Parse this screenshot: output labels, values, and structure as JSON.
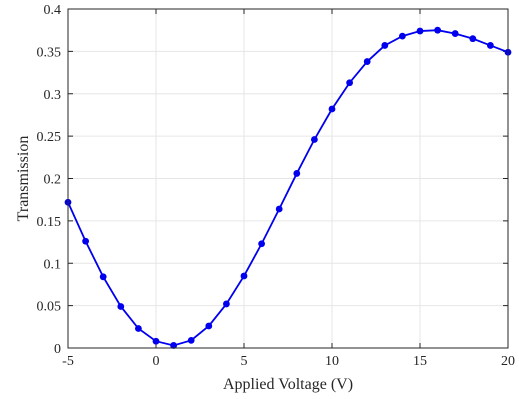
{
  "chart_data": {
    "type": "line",
    "title": "",
    "xlabel": "Applied Voltage (V)",
    "ylabel": "Transmission",
    "xlim": [
      -5,
      20
    ],
    "ylim": [
      0,
      0.4
    ],
    "xticks": [
      -5,
      0,
      5,
      10,
      15,
      20
    ],
    "yticks": [
      0,
      0.05,
      0.1,
      0.15,
      0.2,
      0.25,
      0.3,
      0.35,
      0.4
    ],
    "xtick_labels": [
      "-5",
      "0",
      "5",
      "10",
      "15",
      "20"
    ],
    "ytick_labels": [
      "0",
      "0.05",
      "0.1",
      "0.15",
      "0.2",
      "0.25",
      "0.3",
      "0.35",
      "0.4"
    ],
    "grid": true,
    "legend": "none",
    "series": [
      {
        "color": "#0000ee",
        "marker": "circle",
        "x": [
          -5,
          -4,
          -3,
          -2,
          -1,
          0,
          1,
          2,
          3,
          4,
          5,
          6,
          7,
          8,
          9,
          10,
          11,
          12,
          13,
          14,
          15,
          16,
          17,
          18,
          19,
          20
        ],
        "y": [
          0.172,
          0.126,
          0.084,
          0.049,
          0.023,
          0.008,
          0.003,
          0.009,
          0.026,
          0.052,
          0.085,
          0.123,
          0.164,
          0.206,
          0.246,
          0.282,
          0.313,
          0.338,
          0.357,
          0.368,
          0.374,
          0.375,
          0.371,
          0.365,
          0.357,
          0.349
        ]
      }
    ]
  }
}
